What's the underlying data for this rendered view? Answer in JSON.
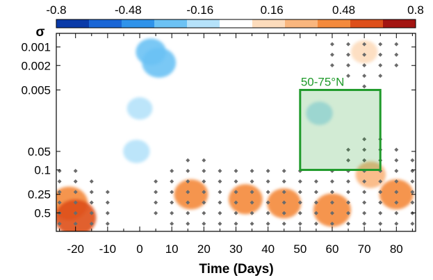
{
  "chart_data": {
    "type": "heatmap",
    "title": "",
    "xlabel": "Time (Days)",
    "ylabel": "σ",
    "x_ticks": [
      "-20",
      "-10",
      "0",
      "10",
      "20",
      "30",
      "40",
      "50",
      "60",
      "70",
      "80"
    ],
    "x_tick_values": [
      -20,
      -10,
      0,
      10,
      20,
      30,
      40,
      50,
      60,
      70,
      80
    ],
    "xlim": [
      -26,
      86
    ],
    "y_ticks": [
      "0.001",
      "0.002",
      "0.005",
      "0.05",
      "0.1",
      "0.25",
      "0.5"
    ],
    "y_tick_values": [
      0.001,
      0.002,
      0.005,
      0.05,
      0.1,
      0.25,
      0.5
    ],
    "y_scale": "log",
    "y_inverted": true,
    "ylim": [
      0.0006,
      1.0
    ],
    "colorbar": {
      "ticks": [
        "-0.8",
        "-0.48",
        "-0.16",
        "0.16",
        "0.48",
        "0.8"
      ],
      "range": [
        -0.8,
        0.8
      ],
      "levels": 10,
      "colors": [
        "#0a3aa8",
        "#1a66d6",
        "#2f93ea",
        "#6cc2f4",
        "#b5e2fa",
        "#ffffff",
        "#fddcbc",
        "#f9b67e",
        "#f48a3c",
        "#de4f1a",
        "#a31512"
      ],
      "placement": "top"
    },
    "region": {
      "label": "50-75°N",
      "x_range": [
        50,
        75
      ],
      "y_range": [
        0.005,
        0.1
      ],
      "color": "#1f9a2a"
    },
    "anomaly_blobs": [
      {
        "x": 3.5,
        "y": 0.0012,
        "value": -0.3
      },
      {
        "x": 6,
        "y": 0.0018,
        "value": -0.4
      },
      {
        "x": 0,
        "y": 0.01,
        "value": -0.17
      },
      {
        "x": -1,
        "y": 0.05,
        "value": -0.2
      },
      {
        "x": -22,
        "y": 0.35,
        "value": 0.5
      },
      {
        "x": -20,
        "y": 0.6,
        "value": 0.6
      },
      {
        "x": 16,
        "y": 0.25,
        "value": 0.4
      },
      {
        "x": 33,
        "y": 0.3,
        "value": 0.4
      },
      {
        "x": 45,
        "y": 0.35,
        "value": 0.4
      },
      {
        "x": 60,
        "y": 0.45,
        "value": 0.5
      },
      {
        "x": 72,
        "y": 0.12,
        "value": 0.3
      },
      {
        "x": 80,
        "y": 0.25,
        "value": 0.4
      },
      {
        "x": 70,
        "y": 0.0012,
        "value": 0.2
      },
      {
        "x": 56,
        "y": 0.012,
        "value": -0.2
      }
    ],
    "grid": false,
    "significance_markers": "diamond stippling"
  }
}
